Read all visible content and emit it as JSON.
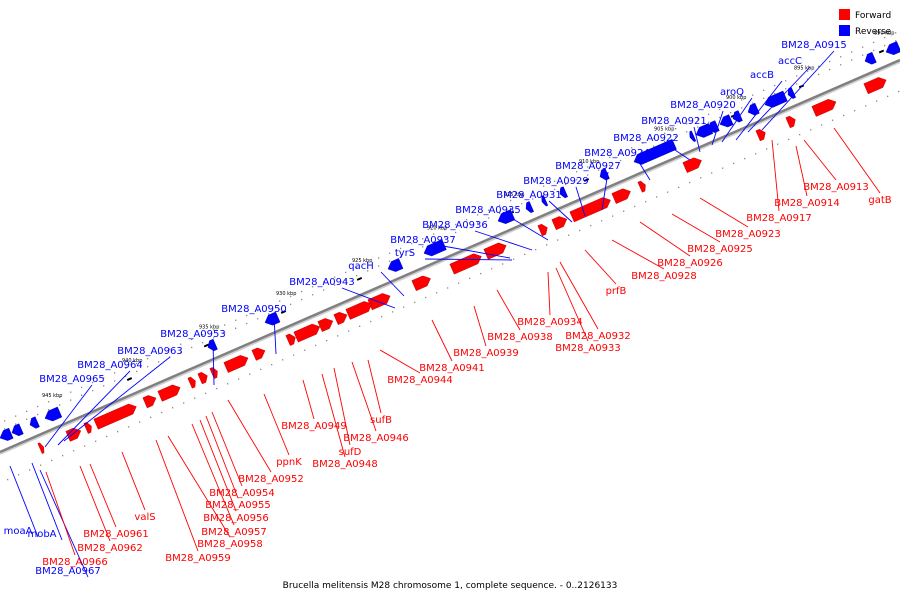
{
  "caption": "Brucella melitensis M28 chromosome 1, complete sequence. - 0..2126133",
  "legend": [
    {
      "label": "Forward",
      "color": "#ff0000"
    },
    {
      "label": "Reverse",
      "color": "#0000ff"
    }
  ],
  "colors": {
    "forward": "#ff0000",
    "reverse": "#0000ff",
    "backbone": "#808080"
  },
  "ticks": [
    "890 kbp",
    "895 kbp",
    "900 kbp",
    "905 kbp",
    "910 kbp",
    "915 kbp",
    "920 kbp",
    "925 kbp",
    "930 kbp",
    "935 kbp",
    "940 kbp",
    "945 kbp"
  ],
  "reverse_labels": [
    "BM28_A0915",
    "accC",
    "accB",
    "aroQ",
    "BM28_A0920",
    "BM28_A0921",
    "BM28_A0922",
    "BM28_A0924",
    "BM28_A0927",
    "BM28_A0929",
    "BM28_A0931",
    "BM28_A0935",
    "BM28_A0936",
    "BM28_A0937",
    "tyrS",
    "qacH",
    "BM28_A0943",
    "BM28_A0950",
    "BM28_A0953",
    "BM28_A0963",
    "BM28_A0964",
    "BM28_A0965",
    "moaA",
    "mobA",
    "BM28_A0967"
  ],
  "forward_labels": [
    "gatB",
    "BM28_A0913",
    "BM28_A0914",
    "BM28_A0917",
    "BM28_A0923",
    "BM28_A0925",
    "BM28_A0926",
    "BM28_A0928",
    "prfB",
    "BM28_A0932",
    "BM28_A0933",
    "BM28_A0934",
    "BM28_A0938",
    "BM28_A0939",
    "BM28_A0941",
    "BM28_A0944",
    "sufB",
    "BM28_A0946",
    "sufD",
    "BM28_A0948",
    "BM28_A0949",
    "ppnK",
    "BM28_A0952",
    "BM28_A0954",
    "BM28_A0955",
    "BM28_A0956",
    "BM28_A0957",
    "BM28_A0958",
    "BM28_A0959",
    "valS",
    "BM28_A0961",
    "BM28_A0962",
    "BM28_A0966"
  ]
}
